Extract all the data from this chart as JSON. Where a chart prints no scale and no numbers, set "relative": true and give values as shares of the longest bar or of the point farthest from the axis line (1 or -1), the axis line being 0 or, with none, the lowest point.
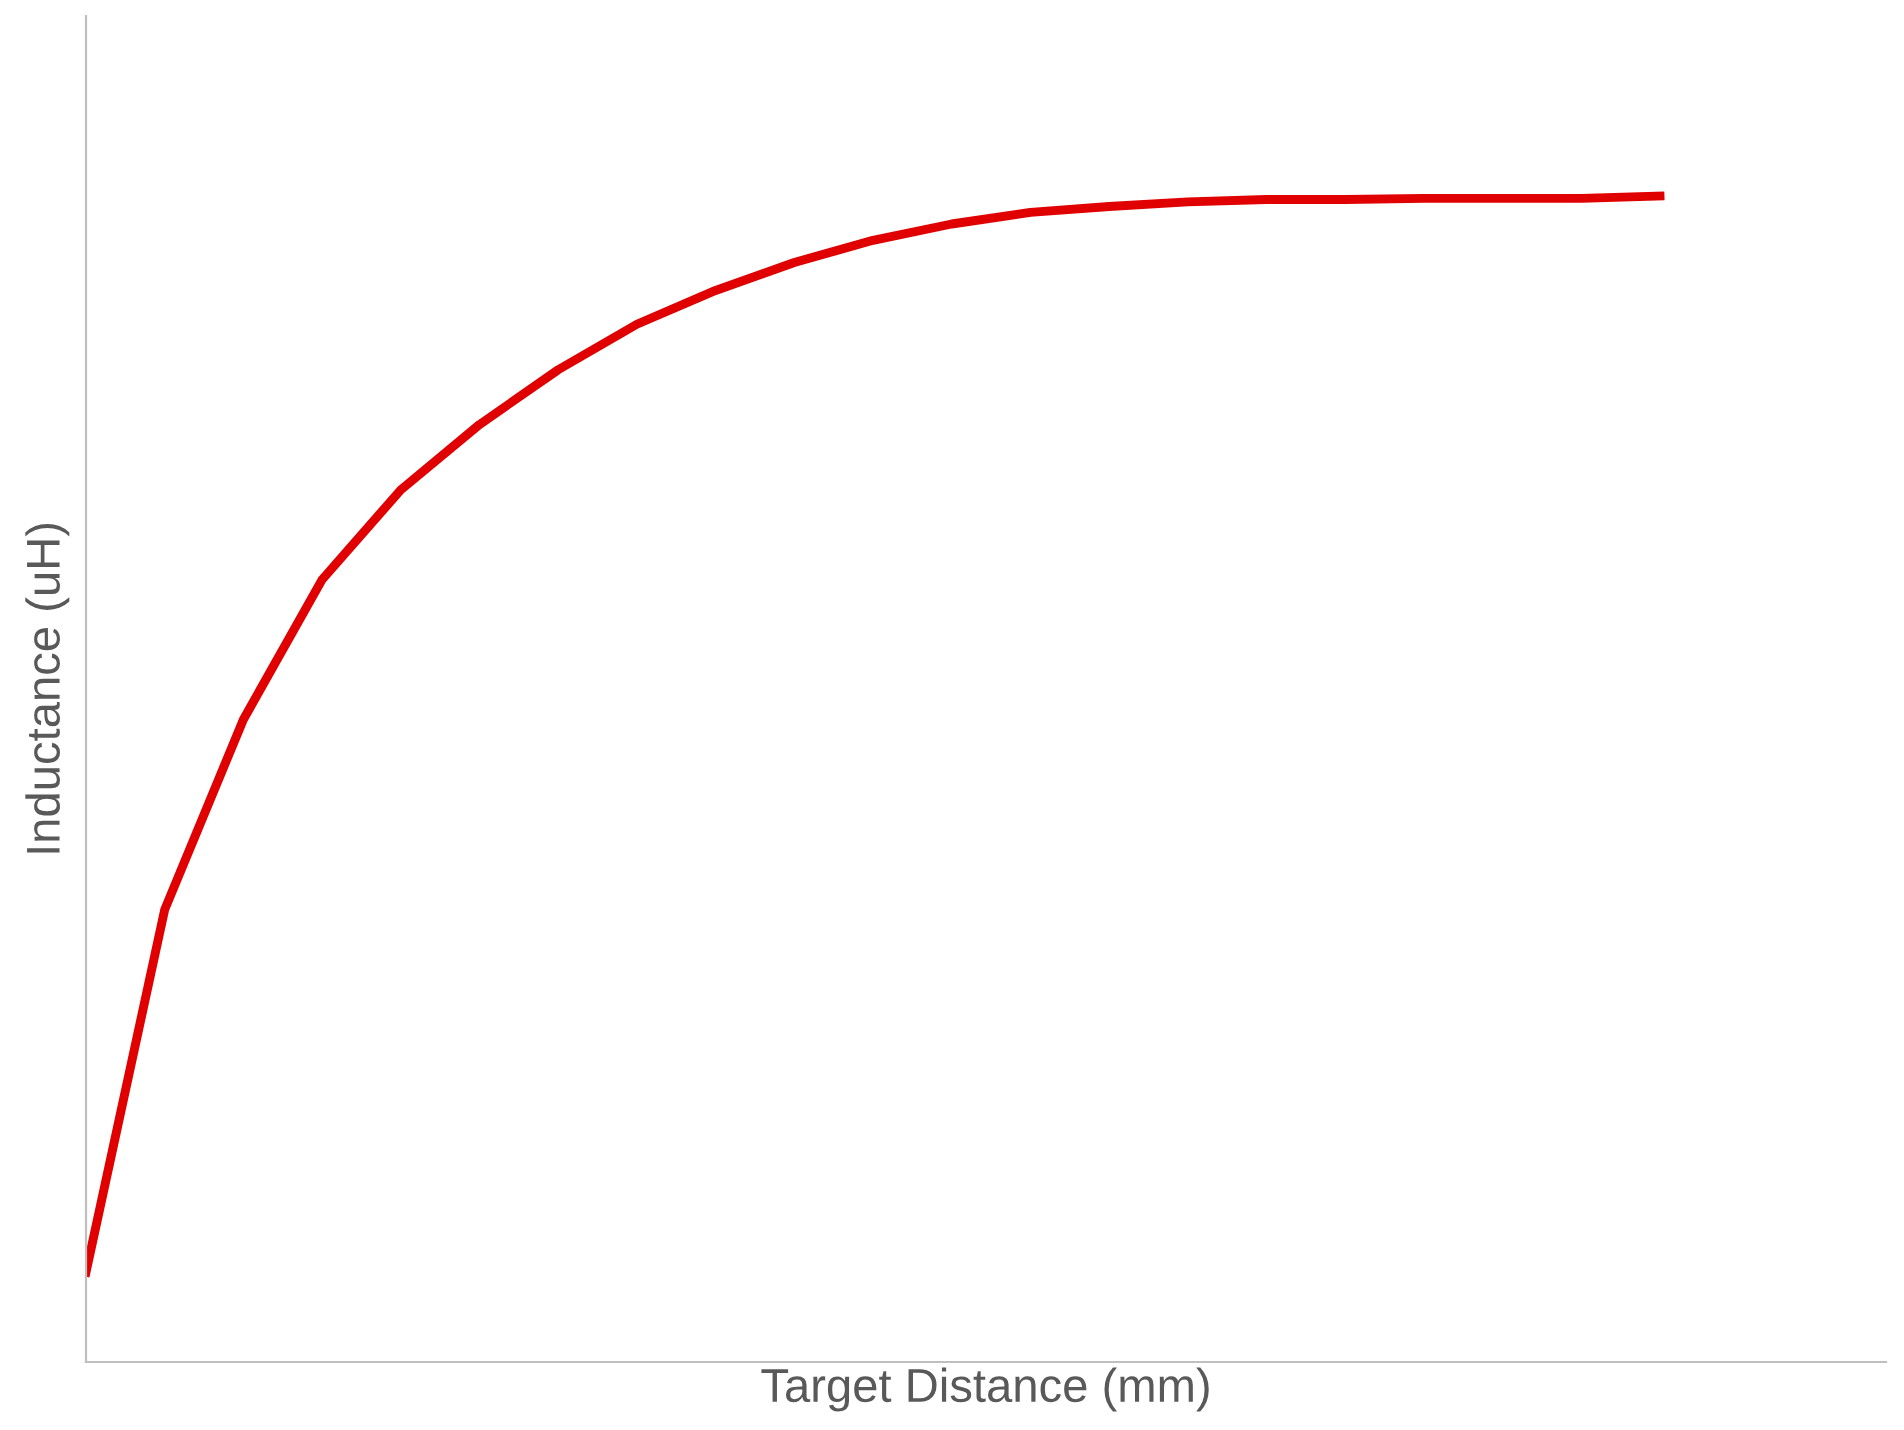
{
  "chart_data": {
    "type": "line",
    "relative": true,
    "xlabel": "Target Distance (mm)",
    "ylabel": "Inductance (uH)",
    "categories": [
      null,
      null,
      null,
      null,
      null,
      null,
      null,
      null,
      null,
      null,
      null,
      null,
      null,
      null,
      null,
      null,
      null,
      null,
      null,
      null,
      null
    ],
    "series": [
      {
        "color": "#e00000",
        "values": [
          0.077,
          0.388,
          0.551,
          0.671,
          0.748,
          0.804,
          0.851,
          0.89,
          0.919,
          0.943,
          0.962,
          0.976,
          0.986,
          0.991,
          0.995,
          0.997,
          0.997,
          0.998,
          0.998,
          0.998,
          1
        ]
      }
    ],
    "grid": false,
    "legend": false,
    "marker": "none",
    "line_style": "solid",
    "tick_labels": false
  }
}
